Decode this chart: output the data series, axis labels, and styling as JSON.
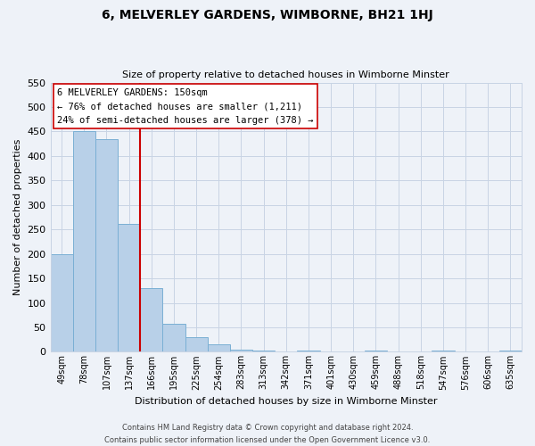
{
  "title": "6, MELVERLEY GARDENS, WIMBORNE, BH21 1HJ",
  "subtitle": "Size of property relative to detached houses in Wimborne Minster",
  "xlabel": "Distribution of detached houses by size in Wimborne Minster",
  "ylabel": "Number of detached properties",
  "all_labels": [
    "49sqm",
    "78sqm",
    "107sqm",
    "137sqm",
    "166sqm",
    "195sqm",
    "225sqm",
    "254sqm",
    "283sqm",
    "313sqm",
    "342sqm",
    "371sqm",
    "401sqm",
    "430sqm",
    "459sqm",
    "488sqm",
    "518sqm",
    "547sqm",
    "576sqm",
    "606sqm",
    "635sqm"
  ],
  "all_values": [
    200,
    450,
    435,
    262,
    130,
    58,
    30,
    15,
    5,
    2,
    0,
    3,
    0,
    0,
    2,
    0,
    0,
    2,
    0,
    0,
    2
  ],
  "bar_color": "#b8d0e8",
  "bar_edge_color": "#7aafd4",
  "vline_x": 3.5,
  "vline_color": "#cc0000",
  "ylim": [
    0,
    550
  ],
  "yticks": [
    0,
    50,
    100,
    150,
    200,
    250,
    300,
    350,
    400,
    450,
    500,
    550
  ],
  "annotation_title": "6 MELVERLEY GARDENS: 150sqm",
  "annotation_line1": "← 76% of detached houses are smaller (1,211)",
  "annotation_line2": "24% of semi-detached houses are larger (378) →",
  "annotation_box_color": "#ffffff",
  "annotation_box_edge": "#cc0000",
  "footer1": "Contains HM Land Registry data © Crown copyright and database right 2024.",
  "footer2": "Contains public sector information licensed under the Open Government Licence v3.0.",
  "bg_color": "#eef2f8",
  "plot_bg_color": "#eef2f8",
  "grid_color": "#c8d4e4"
}
